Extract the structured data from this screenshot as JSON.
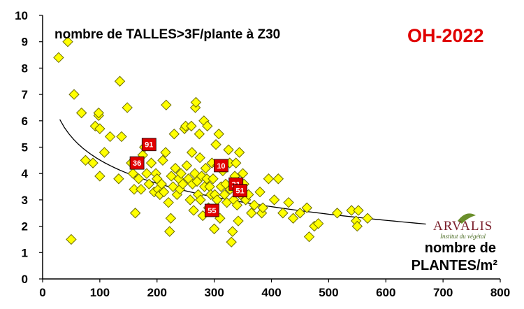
{
  "chart_data": {
    "type": "scatter",
    "title": "nombre de TALLES>3F/plante à Z30",
    "tag": "OH-2022",
    "xlabel_line1": "nombre de",
    "xlabel_line2": "PLANTES/m²",
    "ylabel": "",
    "xlim": [
      0,
      800
    ],
    "ylim": [
      0,
      10
    ],
    "x_ticks": [
      0,
      100,
      200,
      300,
      400,
      500,
      600,
      700,
      800
    ],
    "y_ticks": [
      0,
      1,
      2,
      3,
      4,
      5,
      6,
      7,
      8,
      9,
      10
    ],
    "grid": false,
    "colors": {
      "points": "#ffff00",
      "point_stroke": "#6b6b00",
      "markers": "#e00000",
      "trend": "#000000"
    },
    "series": [
      {
        "values": [
          [
            28,
            8.4
          ],
          [
            44,
            9.0
          ],
          [
            50,
            1.5
          ],
          [
            55,
            7.0
          ],
          [
            68,
            6.3
          ],
          [
            75,
            4.5
          ],
          [
            88,
            4.4
          ],
          [
            92,
            5.8
          ],
          [
            98,
            6.2
          ],
          [
            98,
            6.3
          ],
          [
            100,
            5.7
          ],
          [
            100,
            3.9
          ],
          [
            108,
            4.8
          ],
          [
            118,
            5.4
          ],
          [
            133,
            3.8
          ],
          [
            135,
            7.5
          ],
          [
            138,
            5.4
          ],
          [
            148,
            6.5
          ],
          [
            155,
            4.4
          ],
          [
            158,
            4.0
          ],
          [
            160,
            3.4
          ],
          [
            162,
            2.5
          ],
          [
            168,
            3.8
          ],
          [
            172,
            3.4
          ],
          [
            175,
            4.7
          ],
          [
            178,
            5.0
          ],
          [
            182,
            4.0
          ],
          [
            186,
            3.6
          ],
          [
            190,
            4.4
          ],
          [
            195,
            3.3
          ],
          [
            198,
            4.0
          ],
          [
            200,
            3.8
          ],
          [
            202,
            3.4
          ],
          [
            205,
            3.2
          ],
          [
            208,
            3.6
          ],
          [
            210,
            4.5
          ],
          [
            212,
            3.3
          ],
          [
            215,
            4.8
          ],
          [
            216,
            6.6
          ],
          [
            220,
            2.9
          ],
          [
            222,
            1.8
          ],
          [
            224,
            2.3
          ],
          [
            225,
            3.9
          ],
          [
            228,
            3.5
          ],
          [
            230,
            5.5
          ],
          [
            232,
            4.2
          ],
          [
            235,
            3.2
          ],
          [
            238,
            3.8
          ],
          [
            240,
            3.4
          ],
          [
            242,
            4.0
          ],
          [
            245,
            3.6
          ],
          [
            248,
            5.7
          ],
          [
            250,
            5.8
          ],
          [
            252,
            4.3
          ],
          [
            255,
            3.8
          ],
          [
            258,
            3.0
          ],
          [
            260,
            5.8
          ],
          [
            261,
            4.8
          ],
          [
            262,
            3.6
          ],
          [
            264,
            2.6
          ],
          [
            266,
            4.0
          ],
          [
            267,
            6.5
          ],
          [
            268,
            6.7
          ],
          [
            270,
            3.7
          ],
          [
            272,
            3.2
          ],
          [
            274,
            5.5
          ],
          [
            275,
            4.6
          ],
          [
            276,
            3.0
          ],
          [
            278,
            3.9
          ],
          [
            280,
            2.4
          ],
          [
            282,
            6.0
          ],
          [
            283,
            3.5
          ],
          [
            285,
            4.2
          ],
          [
            287,
            3.8
          ],
          [
            288,
            5.8
          ],
          [
            290,
            2.7
          ],
          [
            292,
            3.5
          ],
          [
            294,
            3.2
          ],
          [
            296,
            4.4
          ],
          [
            298,
            3.8
          ],
          [
            300,
            1.9
          ],
          [
            301,
            3.2
          ],
          [
            303,
            5.1
          ],
          [
            305,
            3.0
          ],
          [
            306,
            4.3
          ],
          [
            308,
            5.5
          ],
          [
            310,
            2.3
          ],
          [
            312,
            3.5
          ],
          [
            315,
            4.1
          ],
          [
            318,
            3.2
          ],
          [
            320,
            3.6
          ],
          [
            322,
            2.9
          ],
          [
            325,
            4.9
          ],
          [
            327,
            4.4
          ],
          [
            328,
            3.4
          ],
          [
            330,
            1.4
          ],
          [
            332,
            1.8
          ],
          [
            334,
            3.0
          ],
          [
            336,
            3.9
          ],
          [
            338,
            4.4
          ],
          [
            340,
            2.8
          ],
          [
            342,
            2.2
          ],
          [
            344,
            4.8
          ],
          [
            346,
            3.2
          ],
          [
            348,
            3.5
          ],
          [
            350,
            4.0
          ],
          [
            352,
            3.6
          ],
          [
            355,
            3.0
          ],
          [
            360,
            3.2
          ],
          [
            365,
            2.5
          ],
          [
            370,
            2.8
          ],
          [
            380,
            3.3
          ],
          [
            383,
            2.5
          ],
          [
            385,
            2.7
          ],
          [
            395,
            3.8
          ],
          [
            405,
            3.0
          ],
          [
            412,
            3.8
          ],
          [
            420,
            2.5
          ],
          [
            430,
            2.9
          ],
          [
            438,
            2.3
          ],
          [
            450,
            2.5
          ],
          [
            462,
            2.7
          ],
          [
            466,
            1.6
          ],
          [
            475,
            2.0
          ],
          [
            482,
            2.1
          ],
          [
            515,
            2.5
          ],
          [
            540,
            2.6
          ],
          [
            548,
            2.2
          ],
          [
            550,
            2.0
          ],
          [
            552,
            2.6
          ],
          [
            568,
            2.3
          ]
        ]
      }
    ],
    "highlighted": [
      {
        "label": "91",
        "x": 186,
        "y": 5.1
      },
      {
        "label": "36",
        "x": 165,
        "y": 4.4
      },
      {
        "label": "10",
        "x": 312,
        "y": 4.3
      },
      {
        "label": "21",
        "x": 338,
        "y": 3.6
      },
      {
        "label": "51",
        "x": 345,
        "y": 3.35
      },
      {
        "label": "55",
        "x": 296,
        "y": 2.6
      }
    ],
    "trendline": {
      "type": "log",
      "a": 6.05,
      "b": -1.277,
      "x0": 30,
      "x1": 670
    }
  },
  "logo": {
    "name": "ARVALIS",
    "subtitle": "Institut du végétal"
  }
}
